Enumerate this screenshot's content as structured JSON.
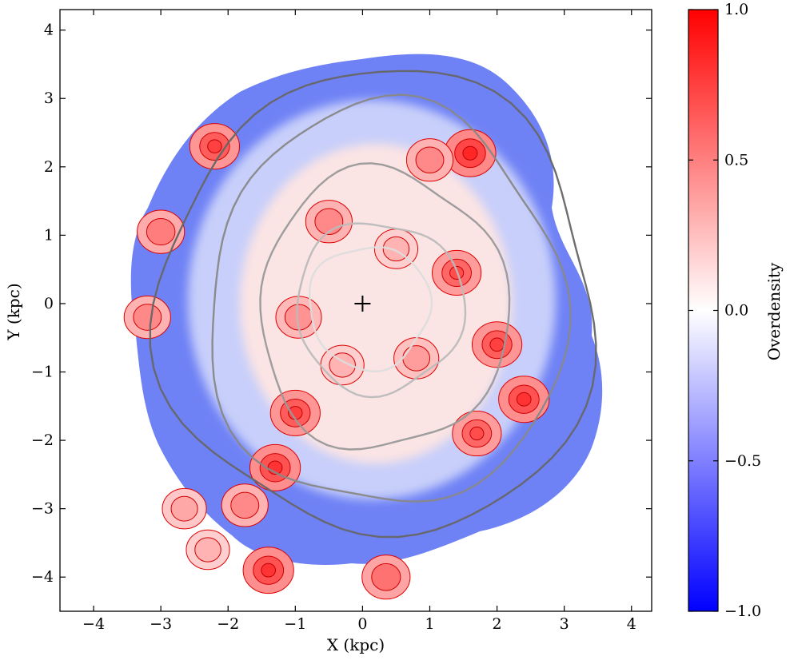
{
  "chart_data": {
    "type": "heatmap",
    "title": "",
    "xlabel": "X (kpc)",
    "ylabel": "Y (kpc)",
    "xlim": [
      -4.5,
      4.3
    ],
    "ylim": [
      -4.5,
      4.3
    ],
    "xticks": [
      -4,
      -3,
      -2,
      -1,
      0,
      1,
      2,
      3,
      4
    ],
    "yticks": [
      -4,
      -3,
      -2,
      -1,
      0,
      1,
      2,
      3,
      4
    ],
    "xtick_labels": [
      "−4",
      "−3",
      "−2",
      "−1",
      "0",
      "1",
      "2",
      "3",
      "4"
    ],
    "ytick_labels": [
      "−4",
      "−3",
      "−2",
      "−1",
      "0",
      "1",
      "2",
      "3",
      "4"
    ],
    "colorbar": {
      "label": "Overdensity",
      "range": [
        -1.0,
        1.0
      ],
      "ticks": [
        1.0,
        0.5,
        0.0,
        -0.5,
        -1.0
      ],
      "tick_labels": [
        "1.0",
        "0.5",
        "0.0",
        "−0.5",
        "−1.0"
      ],
      "colormap": "bwr",
      "color_low": "#0000ff",
      "color_mid": "#ffffff",
      "color_high": "#ff0000"
    },
    "center_marker": {
      "x": 0,
      "y": 0,
      "symbol": "+"
    },
    "gray_contours": [
      {
        "semi_x": 0.9,
        "semi_y": 0.9,
        "center": [
          0.1,
          -0.05
        ],
        "color": "#dddddd"
      },
      {
        "semi_x": 1.25,
        "semi_y": 1.25,
        "center": [
          0.25,
          -0.05
        ],
        "color": "#bbbbbb"
      },
      {
        "semi_x": 1.85,
        "semi_y": 2.05,
        "center": [
          0.3,
          -0.1
        ],
        "color": "#999999"
      },
      {
        "semi_x": 2.65,
        "semi_y": 2.95,
        "center": [
          0.35,
          -0.05
        ],
        "color": "#888888"
      },
      {
        "semi_x": 3.25,
        "semi_y": 3.4,
        "center": [
          0.25,
          0.0
        ],
        "color": "#666666"
      }
    ],
    "overdense_regions": [
      {
        "x": 1.6,
        "y": 2.2,
        "strength": 0.85
      },
      {
        "x": 1.0,
        "y": 2.1,
        "strength": 0.55
      },
      {
        "x": -2.2,
        "y": 2.3,
        "strength": 0.75
      },
      {
        "x": -0.5,
        "y": 1.2,
        "strength": 0.55
      },
      {
        "x": -3.0,
        "y": 1.05,
        "strength": 0.6
      },
      {
        "x": 1.4,
        "y": 0.45,
        "strength": 0.7
      },
      {
        "x": 2.0,
        "y": -0.6,
        "strength": 0.75
      },
      {
        "x": 2.4,
        "y": -1.4,
        "strength": 0.8
      },
      {
        "x": 1.7,
        "y": -1.9,
        "strength": 0.7
      },
      {
        "x": -1.0,
        "y": -1.6,
        "strength": 0.75
      },
      {
        "x": -1.3,
        "y": -2.4,
        "strength": 0.8
      },
      {
        "x": -1.4,
        "y": -3.9,
        "strength": 0.8
      },
      {
        "x": 0.35,
        "y": -4.0,
        "strength": 0.65
      },
      {
        "x": -3.2,
        "y": -0.2,
        "strength": 0.55
      },
      {
        "x": -0.95,
        "y": -0.2,
        "strength": 0.5
      },
      {
        "x": -1.75,
        "y": -2.95,
        "strength": 0.55
      },
      {
        "x": -2.65,
        "y": -3.0,
        "strength": 0.4
      },
      {
        "x": -2.3,
        "y": -3.6,
        "strength": 0.35
      },
      {
        "x": 0.5,
        "y": 0.8,
        "strength": 0.35
      },
      {
        "x": -0.3,
        "y": -0.9,
        "strength": 0.35
      },
      {
        "x": 0.8,
        "y": -0.8,
        "strength": 0.45
      }
    ]
  }
}
